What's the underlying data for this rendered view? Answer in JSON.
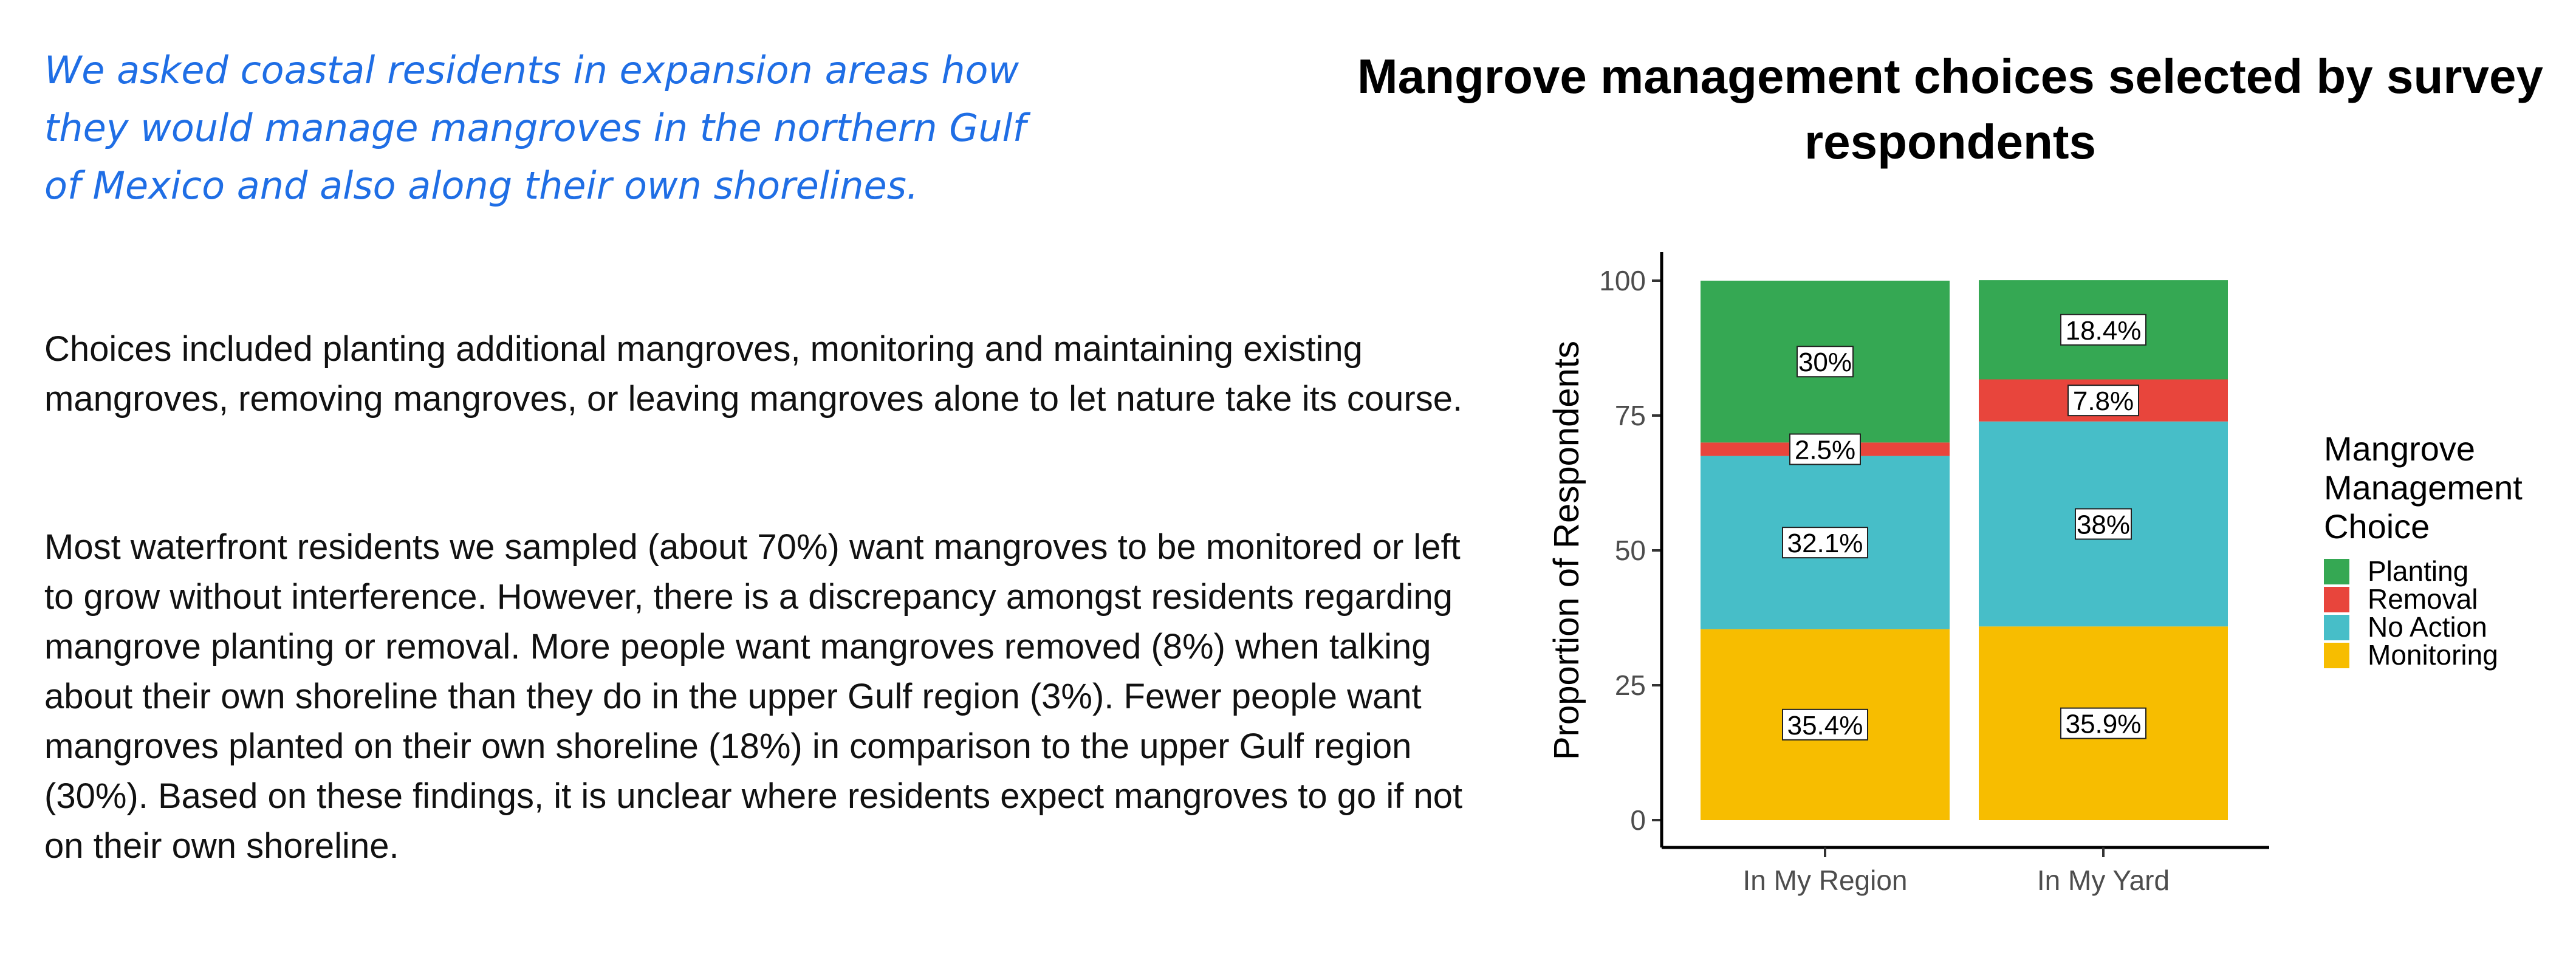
{
  "text": {
    "intro": "We asked coastal residents in expansion areas how they would manage mangroves in the northern Gulf of Mexico and also along their own shorelines.",
    "paragraph_1": "Choices included planting additional mangroves, monitoring and maintaining existing mangroves, removing mangroves, or leaving mangroves alone to let nature take its course.",
    "paragraph_2": "Most waterfront residents we sampled (about 70%) want mangroves to be monitored or left to grow without interference. However, there is a discrepancy amongst residents regarding mangrove planting or removal. More people want mangroves removed (8%) when talking about their own shoreline than they do in the upper Gulf region (3%). Fewer people want mangroves planted on their own shoreline (18%) in comparison to the upper Gulf region (30%). Based on these findings, it is unclear where residents expect mangroves to go if not on their own shoreline."
  },
  "chart_data": {
    "type": "bar",
    "stacked": true,
    "title": "Mangrove management choices selected by survey respondents",
    "xlabel": "",
    "ylabel": "Proportion of Respondents",
    "ylim": [
      0,
      100
    ],
    "yticks": [
      0,
      25,
      50,
      75,
      100
    ],
    "categories": [
      "In My Region",
      "In My Yard"
    ],
    "series": [
      {
        "name": "Monitoring",
        "color": "#f7bd00",
        "values": [
          35.4,
          35.9
        ],
        "labels": [
          "35.4%",
          "35.9%"
        ]
      },
      {
        "name": "No Action",
        "color": "#47bec8",
        "values": [
          32.1,
          38.0
        ],
        "labels": [
          "32.1%",
          "38%"
        ]
      },
      {
        "name": "Removal",
        "color": "#e8453c",
        "values": [
          2.5,
          7.8
        ],
        "labels": [
          "2.5%",
          "7.8%"
        ]
      },
      {
        "name": "Planting",
        "color": "#35a853",
        "values": [
          30.0,
          18.4
        ],
        "labels": [
          "30%",
          "18.4%"
        ]
      }
    ],
    "legend": {
      "title_lines": [
        "Mangrove",
        "Management",
        "Choice"
      ],
      "order": [
        "Planting",
        "Removal",
        "No Action",
        "Monitoring"
      ],
      "position": "right"
    }
  }
}
